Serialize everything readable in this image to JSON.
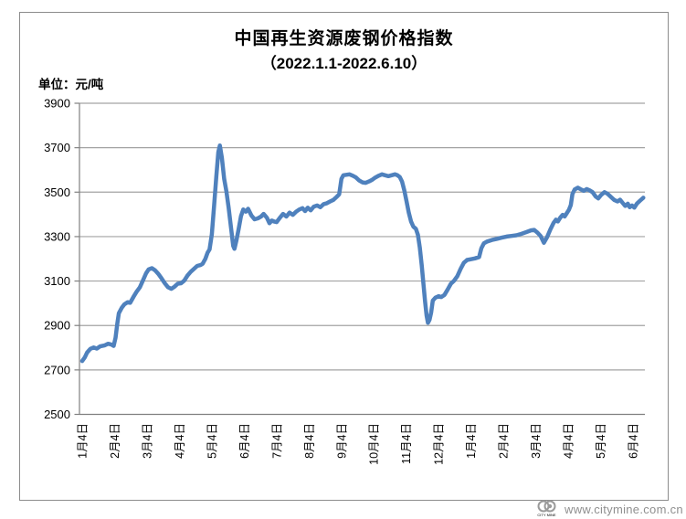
{
  "title": "中国再生资源废钢价格指数",
  "subtitle": "（2022.1.1-2022.6.10）",
  "unit_label": "单位：元/吨",
  "footer": {
    "url": "www.citymine.com.cn",
    "logo_text": "CITY MINE"
  },
  "colors": {
    "line": "#4F81BD",
    "grid": "#a3a3a3",
    "axis": "#808080",
    "frame": "#8c8c8c",
    "footer_text": "#8f8f8f"
  },
  "chart_data": {
    "type": "line",
    "title": "中国再生资源废钢价格指数（2022.1.1-2022.6.10）",
    "xlabel": "",
    "ylabel": "元/吨",
    "ylim": [
      2500,
      3900
    ],
    "y_ticks": [
      3900,
      3700,
      3500,
      3300,
      3100,
      2900,
      2700,
      2500
    ],
    "x_tick_labels": [
      "1月4日",
      "2月4日",
      "3月4日",
      "4月4日",
      "5月4日",
      "6月4日",
      "7月4日",
      "8月4日",
      "9月4日",
      "10月4日",
      "11月4日",
      "12月4日",
      "1月4日",
      "2月4日",
      "3月4日",
      "4月4日",
      "5月4日",
      "6月4日"
    ],
    "x_unit": "months-from-first-tick",
    "grid": true,
    "legend": false,
    "series": [
      {
        "points": [
          [
            0.0,
            2740
          ],
          [
            0.08,
            2756
          ],
          [
            0.15,
            2778
          ],
          [
            0.25,
            2795
          ],
          [
            0.35,
            2801
          ],
          [
            0.45,
            2796
          ],
          [
            0.55,
            2806
          ],
          [
            0.7,
            2811
          ],
          [
            0.8,
            2818
          ],
          [
            0.9,
            2814
          ],
          [
            0.97,
            2808
          ],
          [
            1.03,
            2845
          ],
          [
            1.08,
            2905
          ],
          [
            1.13,
            2955
          ],
          [
            1.22,
            2980
          ],
          [
            1.3,
            2995
          ],
          [
            1.4,
            3005
          ],
          [
            1.48,
            3002
          ],
          [
            1.58,
            3028
          ],
          [
            1.68,
            3052
          ],
          [
            1.78,
            3072
          ],
          [
            1.88,
            3105
          ],
          [
            1.97,
            3135
          ],
          [
            2.05,
            3152
          ],
          [
            2.15,
            3158
          ],
          [
            2.25,
            3148
          ],
          [
            2.35,
            3132
          ],
          [
            2.45,
            3112
          ],
          [
            2.55,
            3090
          ],
          [
            2.65,
            3072
          ],
          [
            2.75,
            3065
          ],
          [
            2.85,
            3075
          ],
          [
            2.95,
            3088
          ],
          [
            3.05,
            3090
          ],
          [
            3.15,
            3102
          ],
          [
            3.25,
            3125
          ],
          [
            3.35,
            3142
          ],
          [
            3.45,
            3155
          ],
          [
            3.55,
            3168
          ],
          [
            3.65,
            3172
          ],
          [
            3.72,
            3178
          ],
          [
            3.8,
            3200
          ],
          [
            3.87,
            3228
          ],
          [
            3.93,
            3242
          ],
          [
            4.0,
            3310
          ],
          [
            4.07,
            3440
          ],
          [
            4.14,
            3570
          ],
          [
            4.2,
            3680
          ],
          [
            4.25,
            3710
          ],
          [
            4.31,
            3655
          ],
          [
            4.38,
            3560
          ],
          [
            4.45,
            3505
          ],
          [
            4.52,
            3430
          ],
          [
            4.6,
            3330
          ],
          [
            4.66,
            3258
          ],
          [
            4.7,
            3245
          ],
          [
            4.76,
            3282
          ],
          [
            4.83,
            3335
          ],
          [
            4.9,
            3392
          ],
          [
            4.97,
            3422
          ],
          [
            5.05,
            3412
          ],
          [
            5.12,
            3425
          ],
          [
            5.22,
            3395
          ],
          [
            5.32,
            3378
          ],
          [
            5.42,
            3382
          ],
          [
            5.52,
            3390
          ],
          [
            5.6,
            3402
          ],
          [
            5.7,
            3385
          ],
          [
            5.78,
            3360
          ],
          [
            5.85,
            3372
          ],
          [
            5.92,
            3368
          ],
          [
            6.0,
            3365
          ],
          [
            6.1,
            3385
          ],
          [
            6.2,
            3402
          ],
          [
            6.3,
            3390
          ],
          [
            6.4,
            3408
          ],
          [
            6.5,
            3398
          ],
          [
            6.6,
            3412
          ],
          [
            6.7,
            3422
          ],
          [
            6.8,
            3428
          ],
          [
            6.88,
            3415
          ],
          [
            6.96,
            3430
          ],
          [
            7.05,
            3418
          ],
          [
            7.15,
            3435
          ],
          [
            7.25,
            3440
          ],
          [
            7.35,
            3432
          ],
          [
            7.45,
            3446
          ],
          [
            7.55,
            3450
          ],
          [
            7.65,
            3458
          ],
          [
            7.75,
            3465
          ],
          [
            7.85,
            3478
          ],
          [
            7.93,
            3490
          ],
          [
            8.0,
            3560
          ],
          [
            8.06,
            3576
          ],
          [
            8.15,
            3578
          ],
          [
            8.25,
            3580
          ],
          [
            8.35,
            3574
          ],
          [
            8.45,
            3566
          ],
          [
            8.55,
            3552
          ],
          [
            8.65,
            3544
          ],
          [
            8.75,
            3542
          ],
          [
            8.85,
            3548
          ],
          [
            8.95,
            3556
          ],
          [
            9.05,
            3566
          ],
          [
            9.15,
            3574
          ],
          [
            9.25,
            3580
          ],
          [
            9.35,
            3576
          ],
          [
            9.45,
            3572
          ],
          [
            9.55,
            3576
          ],
          [
            9.65,
            3580
          ],
          [
            9.73,
            3576
          ],
          [
            9.8,
            3568
          ],
          [
            9.87,
            3548
          ],
          [
            9.94,
            3508
          ],
          [
            10.01,
            3458
          ],
          [
            10.08,
            3408
          ],
          [
            10.15,
            3368
          ],
          [
            10.22,
            3345
          ],
          [
            10.3,
            3335
          ],
          [
            10.36,
            3308
          ],
          [
            10.42,
            3250
          ],
          [
            10.48,
            3170
          ],
          [
            10.53,
            3090
          ],
          [
            10.58,
            3010
          ],
          [
            10.63,
            2945
          ],
          [
            10.67,
            2912
          ],
          [
            10.72,
            2925
          ],
          [
            10.77,
            2958
          ],
          [
            10.82,
            3012
          ],
          [
            10.9,
            3025
          ],
          [
            11.0,
            3032
          ],
          [
            11.08,
            3028
          ],
          [
            11.18,
            3038
          ],
          [
            11.28,
            3062
          ],
          [
            11.38,
            3088
          ],
          [
            11.48,
            3102
          ],
          [
            11.58,
            3122
          ],
          [
            11.68,
            3155
          ],
          [
            11.78,
            3182
          ],
          [
            11.88,
            3195
          ],
          [
            12.0,
            3198
          ],
          [
            12.12,
            3202
          ],
          [
            12.25,
            3208
          ],
          [
            12.32,
            3248
          ],
          [
            12.4,
            3270
          ],
          [
            12.5,
            3278
          ],
          [
            12.65,
            3285
          ],
          [
            12.8,
            3290
          ],
          [
            12.95,
            3295
          ],
          [
            13.1,
            3300
          ],
          [
            13.25,
            3303
          ],
          [
            13.4,
            3306
          ],
          [
            13.55,
            3312
          ],
          [
            13.7,
            3320
          ],
          [
            13.85,
            3328
          ],
          [
            13.95,
            3330
          ],
          [
            14.05,
            3318
          ],
          [
            14.15,
            3302
          ],
          [
            14.25,
            3272
          ],
          [
            14.35,
            3298
          ],
          [
            14.45,
            3332
          ],
          [
            14.55,
            3362
          ],
          [
            14.62,
            3376
          ],
          [
            14.68,
            3368
          ],
          [
            14.76,
            3386
          ],
          [
            14.83,
            3398
          ],
          [
            14.89,
            3390
          ],
          [
            14.96,
            3406
          ],
          [
            15.02,
            3420
          ],
          [
            15.08,
            3442
          ],
          [
            15.13,
            3492
          ],
          [
            15.2,
            3512
          ],
          [
            15.3,
            3520
          ],
          [
            15.4,
            3512
          ],
          [
            15.48,
            3506
          ],
          [
            15.57,
            3514
          ],
          [
            15.66,
            3508
          ],
          [
            15.75,
            3500
          ],
          [
            15.85,
            3480
          ],
          [
            15.93,
            3472
          ],
          [
            16.02,
            3488
          ],
          [
            16.12,
            3500
          ],
          [
            16.22,
            3492
          ],
          [
            16.32,
            3478
          ],
          [
            16.42,
            3465
          ],
          [
            16.52,
            3458
          ],
          [
            16.6,
            3466
          ],
          [
            16.68,
            3452
          ],
          [
            16.76,
            3438
          ],
          [
            16.84,
            3448
          ],
          [
            16.9,
            3432
          ],
          [
            16.97,
            3440
          ],
          [
            17.04,
            3430
          ],
          [
            17.12,
            3448
          ],
          [
            17.22,
            3462
          ],
          [
            17.32,
            3475
          ]
        ]
      }
    ]
  }
}
